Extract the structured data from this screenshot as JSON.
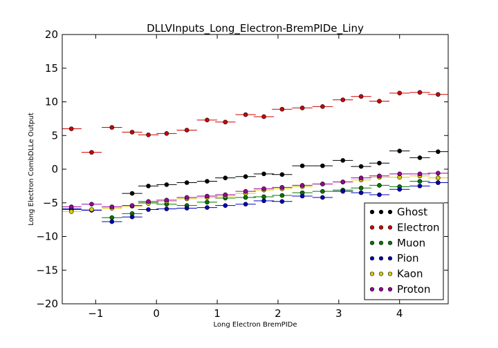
{
  "chart_data": {
    "type": "scatter",
    "title": "DLLVInputs_Long_Electron-BremPIDe_Liny",
    "xlabel": "Long Electron BremPIDe",
    "ylabel": "Long Electron CombDLLe Output",
    "xlim": [
      -1.55,
      4.8
    ],
    "ylim": [
      -20,
      20
    ],
    "xticks": [
      -1,
      0,
      1,
      2,
      3,
      4
    ],
    "xtick_labels": [
      "−1",
      "0",
      "1",
      "2",
      "3",
      "4"
    ],
    "yticks": [
      -20,
      -15,
      -10,
      -5,
      0,
      5,
      10,
      15,
      20
    ],
    "ytick_labels": [
      "−20",
      "−15",
      "−10",
      "−5",
      "0",
      "5",
      "10",
      "15",
      "20"
    ],
    "grid": false,
    "legend_position": "bottom-right",
    "x": [
      -1.4,
      -1.067,
      -0.733,
      -0.4,
      -0.133,
      0.167,
      0.5,
      0.833,
      1.133,
      1.467,
      1.767,
      2.067,
      2.4,
      2.733,
      3.067,
      3.367,
      3.667,
      4.0,
      4.333,
      4.633
    ],
    "x_halfwidth": 0.167,
    "series": [
      {
        "name": "Ghost",
        "color": "#000000",
        "points": [
          [
            -0.4,
            -3.6
          ],
          [
            -0.133,
            -2.5
          ],
          [
            0.167,
            -2.3
          ],
          [
            0.5,
            -2.0
          ],
          [
            0.833,
            -1.8
          ],
          [
            1.133,
            -1.3
          ],
          [
            1.467,
            -1.1
          ],
          [
            1.767,
            -0.7
          ],
          [
            2.067,
            -0.8
          ],
          [
            2.4,
            0.5
          ],
          [
            2.733,
            0.5
          ],
          [
            3.067,
            1.3
          ],
          [
            3.367,
            0.4
          ],
          [
            3.667,
            0.9
          ],
          [
            4.0,
            2.7
          ],
          [
            4.333,
            1.7
          ],
          [
            4.633,
            2.6
          ]
        ]
      },
      {
        "name": "Electron",
        "color": "#cc0000",
        "points": [
          [
            -1.4,
            6.0
          ],
          [
            -1.067,
            2.5
          ],
          [
            -0.733,
            6.2
          ],
          [
            -0.4,
            5.5
          ],
          [
            -0.133,
            5.1
          ],
          [
            0.167,
            5.3
          ],
          [
            0.5,
            5.8
          ],
          [
            0.833,
            7.3
          ],
          [
            1.133,
            7.0
          ],
          [
            1.467,
            8.1
          ],
          [
            1.767,
            7.8
          ],
          [
            2.067,
            8.9
          ],
          [
            2.4,
            9.1
          ],
          [
            2.733,
            9.3
          ],
          [
            3.067,
            10.3
          ],
          [
            3.367,
            10.8
          ],
          [
            3.667,
            10.1
          ],
          [
            4.0,
            11.3
          ],
          [
            4.333,
            11.4
          ],
          [
            4.633,
            11.1
          ]
        ]
      },
      {
        "name": "Muon",
        "color": "#007700",
        "points": [
          [
            -1.4,
            -6.0
          ],
          [
            -1.067,
            -6.1
          ],
          [
            -0.733,
            -7.2
          ],
          [
            -0.4,
            -6.6
          ],
          [
            -0.133,
            -5.0
          ],
          [
            0.167,
            -5.2
          ],
          [
            0.5,
            -5.4
          ],
          [
            0.833,
            -4.9
          ],
          [
            1.133,
            -4.3
          ],
          [
            1.467,
            -4.2
          ],
          [
            1.767,
            -4.1
          ],
          [
            2.067,
            -3.9
          ],
          [
            2.4,
            -3.5
          ],
          [
            2.733,
            -3.3
          ],
          [
            3.067,
            -3.1
          ],
          [
            3.367,
            -2.8
          ],
          [
            3.667,
            -2.4
          ],
          [
            4.0,
            -2.6
          ],
          [
            4.333,
            -1.8
          ],
          [
            4.633,
            -2.0
          ]
        ]
      },
      {
        "name": "Pion",
        "color": "#0000bb",
        "points": [
          [
            -1.4,
            -5.9
          ],
          [
            -1.067,
            -6.1
          ],
          [
            -0.733,
            -7.8
          ],
          [
            -0.4,
            -7.1
          ],
          [
            -0.133,
            -6.0
          ],
          [
            0.167,
            -5.9
          ],
          [
            0.5,
            -5.8
          ],
          [
            0.833,
            -5.7
          ],
          [
            1.133,
            -5.4
          ],
          [
            1.467,
            -5.2
          ],
          [
            1.767,
            -4.7
          ],
          [
            2.067,
            -4.8
          ],
          [
            2.4,
            -4.0
          ],
          [
            2.733,
            -4.2
          ],
          [
            3.067,
            -3.3
          ],
          [
            3.367,
            -3.5
          ],
          [
            3.667,
            -3.8
          ],
          [
            4.0,
            -3.0
          ],
          [
            4.333,
            -2.5
          ],
          [
            4.633,
            -2.0
          ]
        ]
      },
      {
        "name": "Kaon",
        "color": "#ddcc00",
        "points": [
          [
            -1.4,
            -6.3
          ],
          [
            -1.067,
            -6.0
          ],
          [
            -0.733,
            -5.8
          ],
          [
            -0.4,
            -5.5
          ],
          [
            -0.133,
            -5.1
          ],
          [
            0.167,
            -4.8
          ],
          [
            0.5,
            -4.4
          ],
          [
            0.833,
            -4.2
          ],
          [
            1.133,
            -4.0
          ],
          [
            1.467,
            -3.6
          ],
          [
            1.767,
            -3.1
          ],
          [
            2.067,
            -2.9
          ],
          [
            2.4,
            -2.6
          ],
          [
            2.733,
            -2.2
          ],
          [
            3.067,
            -1.9
          ],
          [
            3.367,
            -1.6
          ],
          [
            3.667,
            -1.2
          ],
          [
            4.0,
            -1.2
          ],
          [
            4.333,
            -1.0
          ],
          [
            4.633,
            -1.3
          ]
        ]
      },
      {
        "name": "Proton",
        "color": "#990099",
        "points": [
          [
            -1.4,
            -5.6
          ],
          [
            -1.067,
            -5.2
          ],
          [
            -0.733,
            -5.6
          ],
          [
            -0.4,
            -5.4
          ],
          [
            -0.133,
            -4.8
          ],
          [
            0.167,
            -4.6
          ],
          [
            0.5,
            -4.2
          ],
          [
            0.833,
            -4.0
          ],
          [
            1.133,
            -3.8
          ],
          [
            1.467,
            -3.3
          ],
          [
            1.767,
            -2.9
          ],
          [
            2.067,
            -2.7
          ],
          [
            2.4,
            -2.4
          ],
          [
            2.733,
            -2.2
          ],
          [
            3.067,
            -1.9
          ],
          [
            3.367,
            -1.3
          ],
          [
            3.667,
            -1.0
          ],
          [
            4.0,
            -0.7
          ],
          [
            4.333,
            -0.7
          ],
          [
            4.633,
            -0.6
          ]
        ]
      }
    ]
  }
}
